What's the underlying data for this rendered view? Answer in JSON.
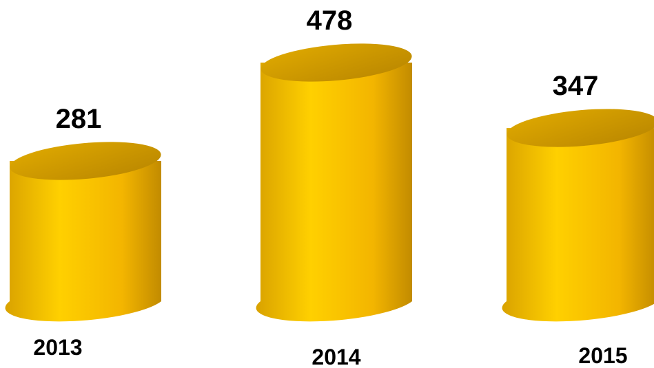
{
  "chart_data": {
    "type": "bar",
    "style": "3d-cylinder",
    "categories": [
      "2013",
      "2014",
      "2015"
    ],
    "values": [
      281,
      478,
      347
    ],
    "title": "",
    "xlabel": "",
    "ylabel": "",
    "grid": false,
    "legend": "none",
    "colors": {
      "body_light": "#FFD000",
      "body_mid": "#F5B800",
      "body_dark": "#C48E00",
      "top_light": "#D9A000",
      "top_dark": "#B88500"
    }
  }
}
